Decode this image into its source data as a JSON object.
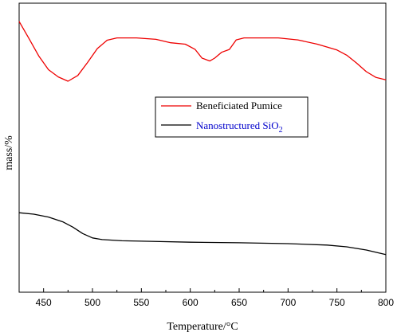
{
  "chart_data": {
    "type": "line",
    "title": "",
    "xlabel": "Temperature/°C",
    "ylabel": "mass/%",
    "xlim": [
      425,
      800
    ],
    "ylim": [
      0,
      1
    ],
    "x_ticks": [
      450,
      500,
      550,
      600,
      650,
      700,
      750,
      800
    ],
    "y_ticks_labeled": false,
    "grid": false,
    "legend_position": "upper-right",
    "series": [
      {
        "name": "Beneficiated Pumice",
        "name_sub": "",
        "color": "#ee0000",
        "x": [
          425,
          435,
          445,
          455,
          465,
          475,
          485,
          495,
          505,
          515,
          525,
          545,
          565,
          580,
          595,
          605,
          612,
          620,
          625,
          632,
          640,
          647,
          655,
          670,
          690,
          710,
          730,
          750,
          760,
          770,
          780,
          790,
          800
        ],
        "y": [
          0.937,
          0.878,
          0.818,
          0.77,
          0.745,
          0.73,
          0.75,
          0.795,
          0.843,
          0.872,
          0.88,
          0.88,
          0.875,
          0.863,
          0.858,
          0.84,
          0.81,
          0.8,
          0.81,
          0.83,
          0.84,
          0.873,
          0.88,
          0.88,
          0.88,
          0.873,
          0.858,
          0.838,
          0.82,
          0.793,
          0.763,
          0.743,
          0.735
        ]
      },
      {
        "name": "Nanostructured SiO",
        "name_sub": "2",
        "color": "#000000",
        "x": [
          425,
          440,
          455,
          470,
          480,
          490,
          500,
          510,
          530,
          560,
          600,
          650,
          700,
          740,
          760,
          780,
          800
        ],
        "y": [
          0.275,
          0.27,
          0.26,
          0.243,
          0.225,
          0.203,
          0.188,
          0.182,
          0.178,
          0.176,
          0.173,
          0.171,
          0.168,
          0.163,
          0.157,
          0.146,
          0.13
        ]
      }
    ]
  }
}
